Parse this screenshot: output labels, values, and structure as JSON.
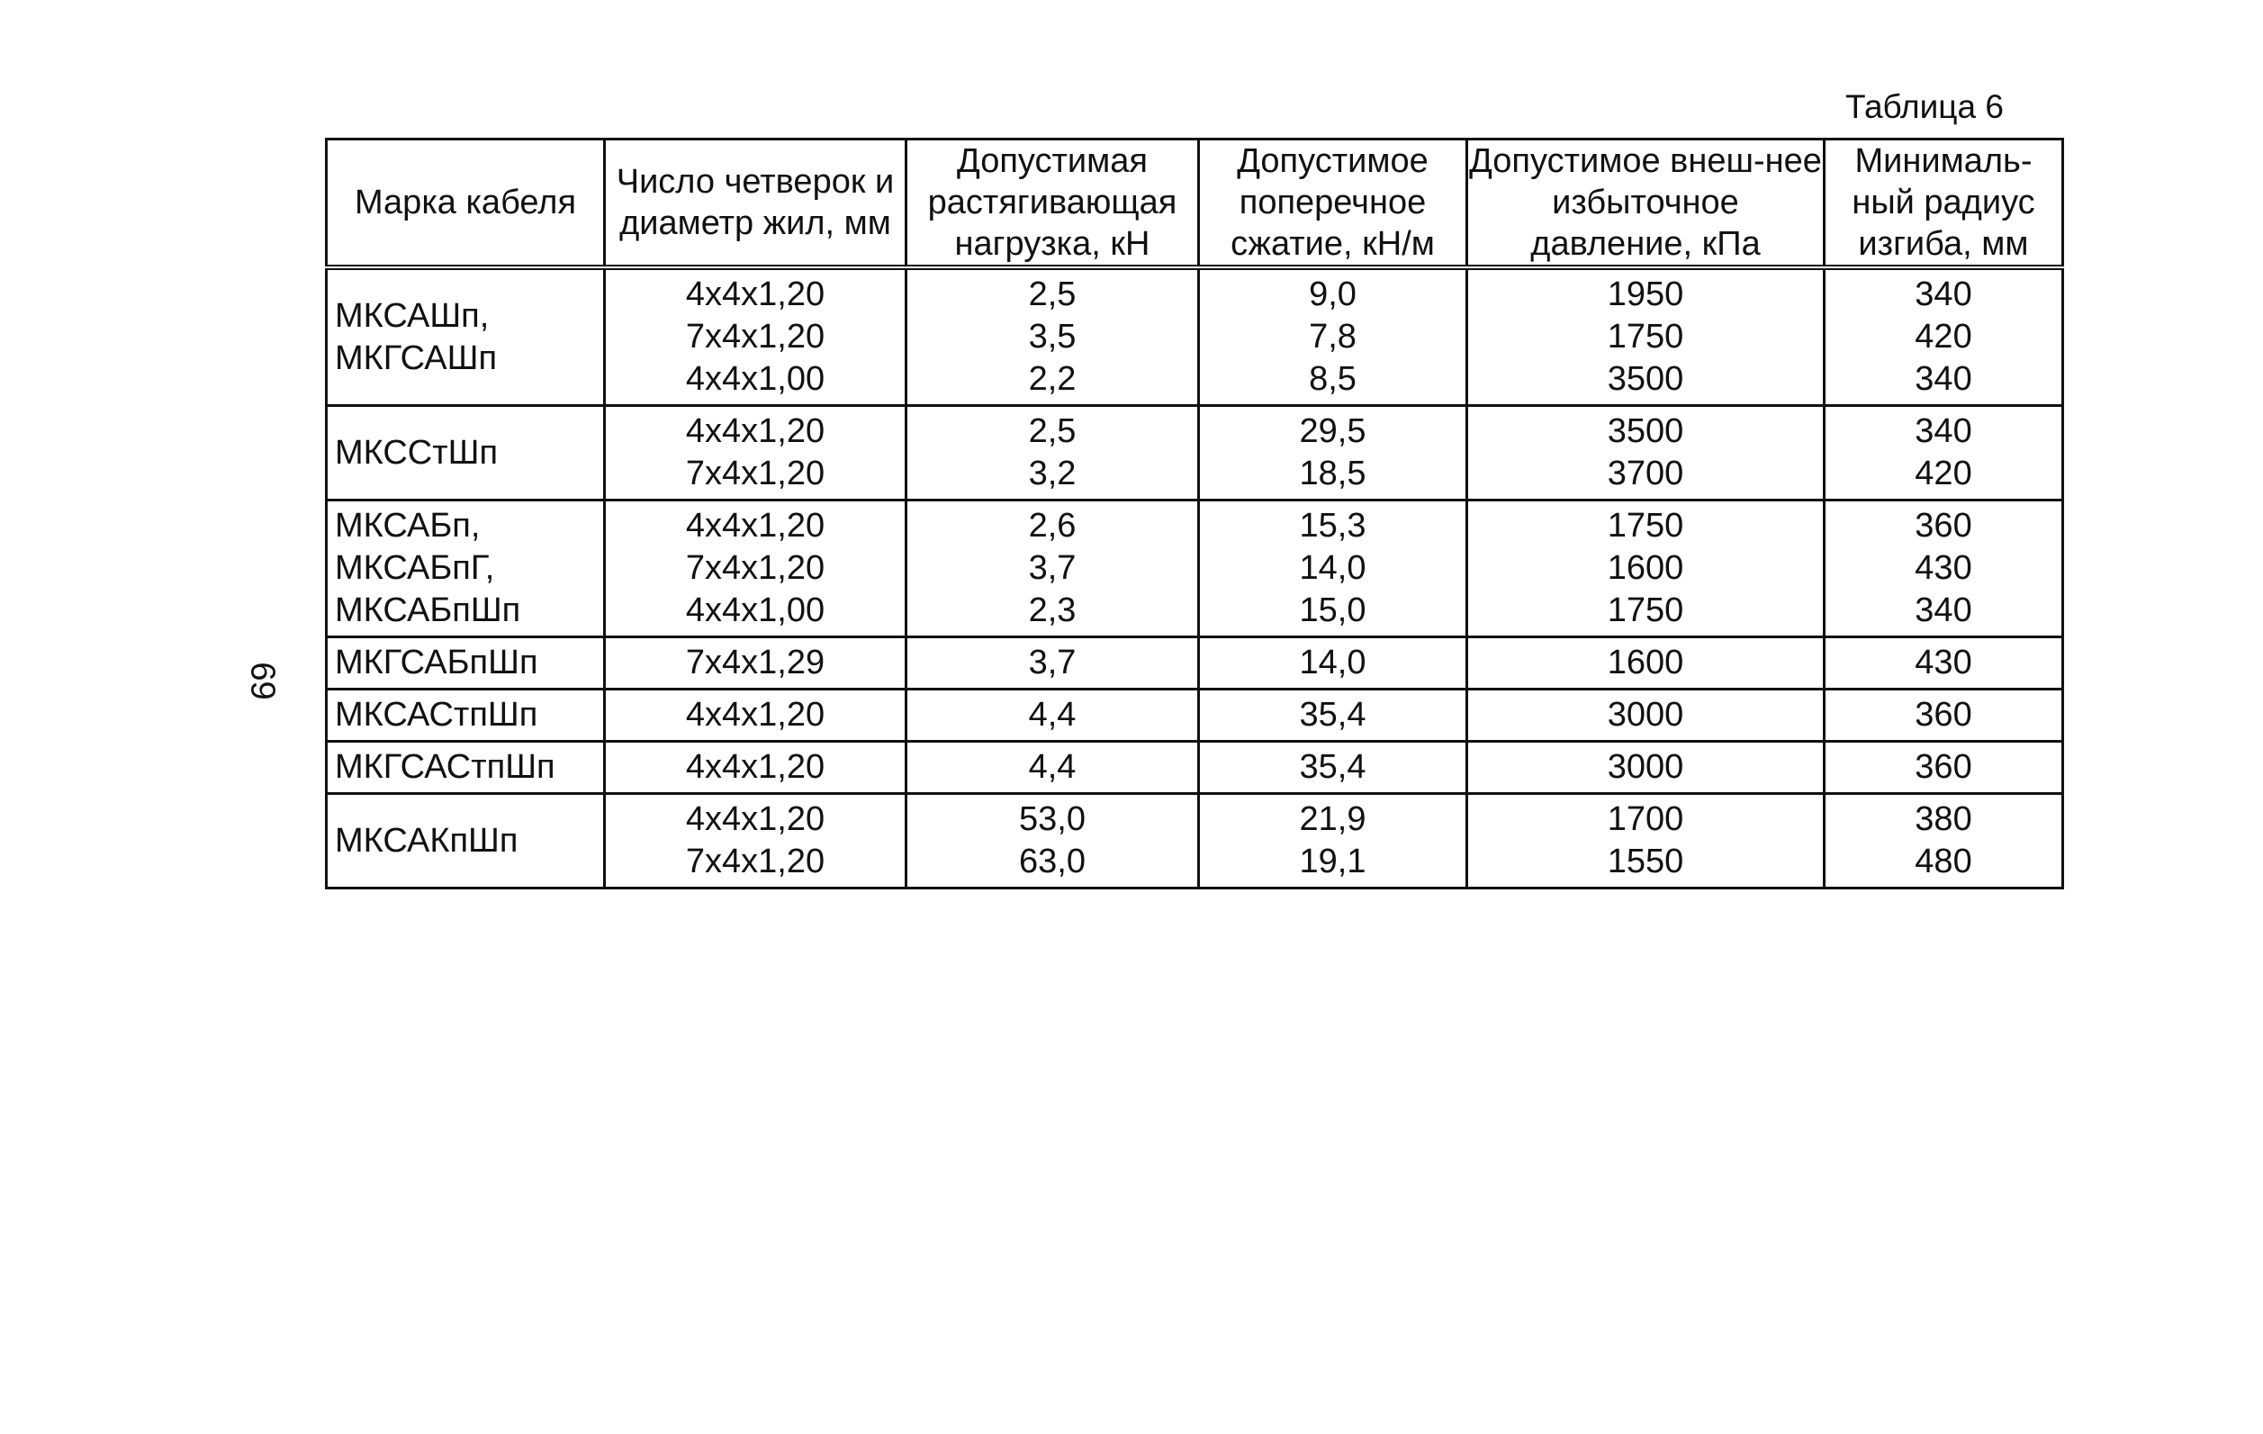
{
  "caption": "Таблица 6",
  "page_number": "69",
  "columns": [
    "Марка кабеля",
    "Число четверок и диаметр жил, мм",
    "Допустимая растягивающая нагрузка, кН",
    "Допустимое поперечное сжатие, кН/м",
    "Допустимое внеш-нее избыточное давление, кПа",
    "Минималь-ный радиус изгиба, мм"
  ],
  "groups": [
    {
      "brand": [
        "МКСАШп,",
        "МКГСАШп"
      ],
      "size": [
        "4х4х1,20",
        "7х4х1,20",
        "4х4х1,00"
      ],
      "load": [
        "2,5",
        "3,5",
        "2,2"
      ],
      "compression": [
        "9,0",
        "7,8",
        "8,5"
      ],
      "pressure": [
        "1950",
        "1750",
        "3500"
      ],
      "radius": [
        "340",
        "420",
        "340"
      ]
    },
    {
      "brand": [
        "МКССтШп"
      ],
      "size": [
        "4х4х1,20",
        "7х4х1,20"
      ],
      "load": [
        "2,5",
        "3,2"
      ],
      "compression": [
        "29,5",
        "18,5"
      ],
      "pressure": [
        "3500",
        "3700"
      ],
      "radius": [
        "340",
        "420"
      ]
    },
    {
      "brand": [
        "МКСАБп,",
        "МКСАБпГ,",
        "МКСАБпШп"
      ],
      "size": [
        "4х4х1,20",
        "7х4х1,20",
        "4х4х1,00"
      ],
      "load": [
        "2,6",
        "3,7",
        "2,3"
      ],
      "compression": [
        "15,3",
        "14,0",
        "15,0"
      ],
      "pressure": [
        "1750",
        "1600",
        "1750"
      ],
      "radius": [
        "360",
        "430",
        "340"
      ]
    },
    {
      "brand": [
        "МКГСАБпШп"
      ],
      "size": [
        "7х4х1,29"
      ],
      "load": [
        "3,7"
      ],
      "compression": [
        "14,0"
      ],
      "pressure": [
        "1600"
      ],
      "radius": [
        "430"
      ]
    },
    {
      "brand": [
        "МКСАСтпШп"
      ],
      "size": [
        "4х4х1,20"
      ],
      "load": [
        "4,4"
      ],
      "compression": [
        "35,4"
      ],
      "pressure": [
        "3000"
      ],
      "radius": [
        "360"
      ]
    },
    {
      "brand": [
        "МКГСАСтпШп"
      ],
      "size": [
        "4х4х1,20"
      ],
      "load": [
        "4,4"
      ],
      "compression": [
        "35,4"
      ],
      "pressure": [
        "3000"
      ],
      "radius": [
        "360"
      ]
    },
    {
      "brand": [
        "МКСАКпШп"
      ],
      "size": [
        "4х4х1,20",
        "7х4х1,20"
      ],
      "load": [
        "53,0",
        "63,0"
      ],
      "compression": [
        "21,9",
        "19,1"
      ],
      "pressure": [
        "1700",
        "1550"
      ],
      "radius": [
        "380",
        "480"
      ]
    }
  ]
}
